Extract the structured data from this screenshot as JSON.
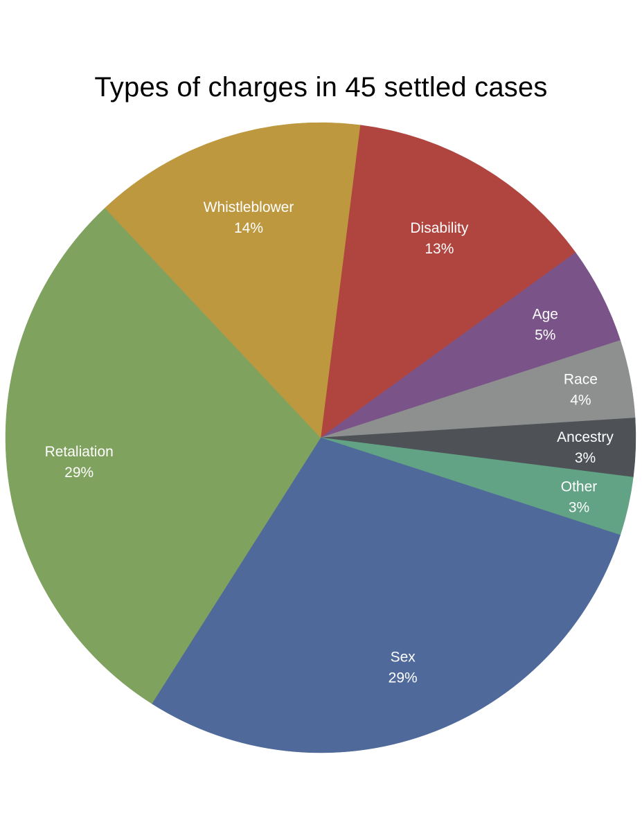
{
  "chart_data": {
    "type": "pie",
    "title": "Types of charges in 45 settled cases",
    "slices": [
      {
        "label": "Disability",
        "value": 13,
        "percent_label": "13%",
        "color": "#b0443f"
      },
      {
        "label": "Age",
        "value": 5,
        "percent_label": "5%",
        "color": "#7a5488"
      },
      {
        "label": "Race",
        "value": 4,
        "percent_label": "4%",
        "color": "#8e8f8f"
      },
      {
        "label": "Ancestry",
        "value": 3,
        "percent_label": "3%",
        "color": "#4e5257"
      },
      {
        "label": "Other",
        "value": 3,
        "percent_label": "3%",
        "color": "#62a285"
      },
      {
        "label": "Sex",
        "value": 29,
        "percent_label": "29%",
        "color": "#4f6a9a"
      },
      {
        "label": "Retaliation",
        "value": 29,
        "percent_label": "29%",
        "color": "#80a25f"
      },
      {
        "label": "Whistleblower",
        "value": 14,
        "percent_label": "14%",
        "color": "#bd983f"
      }
    ]
  }
}
